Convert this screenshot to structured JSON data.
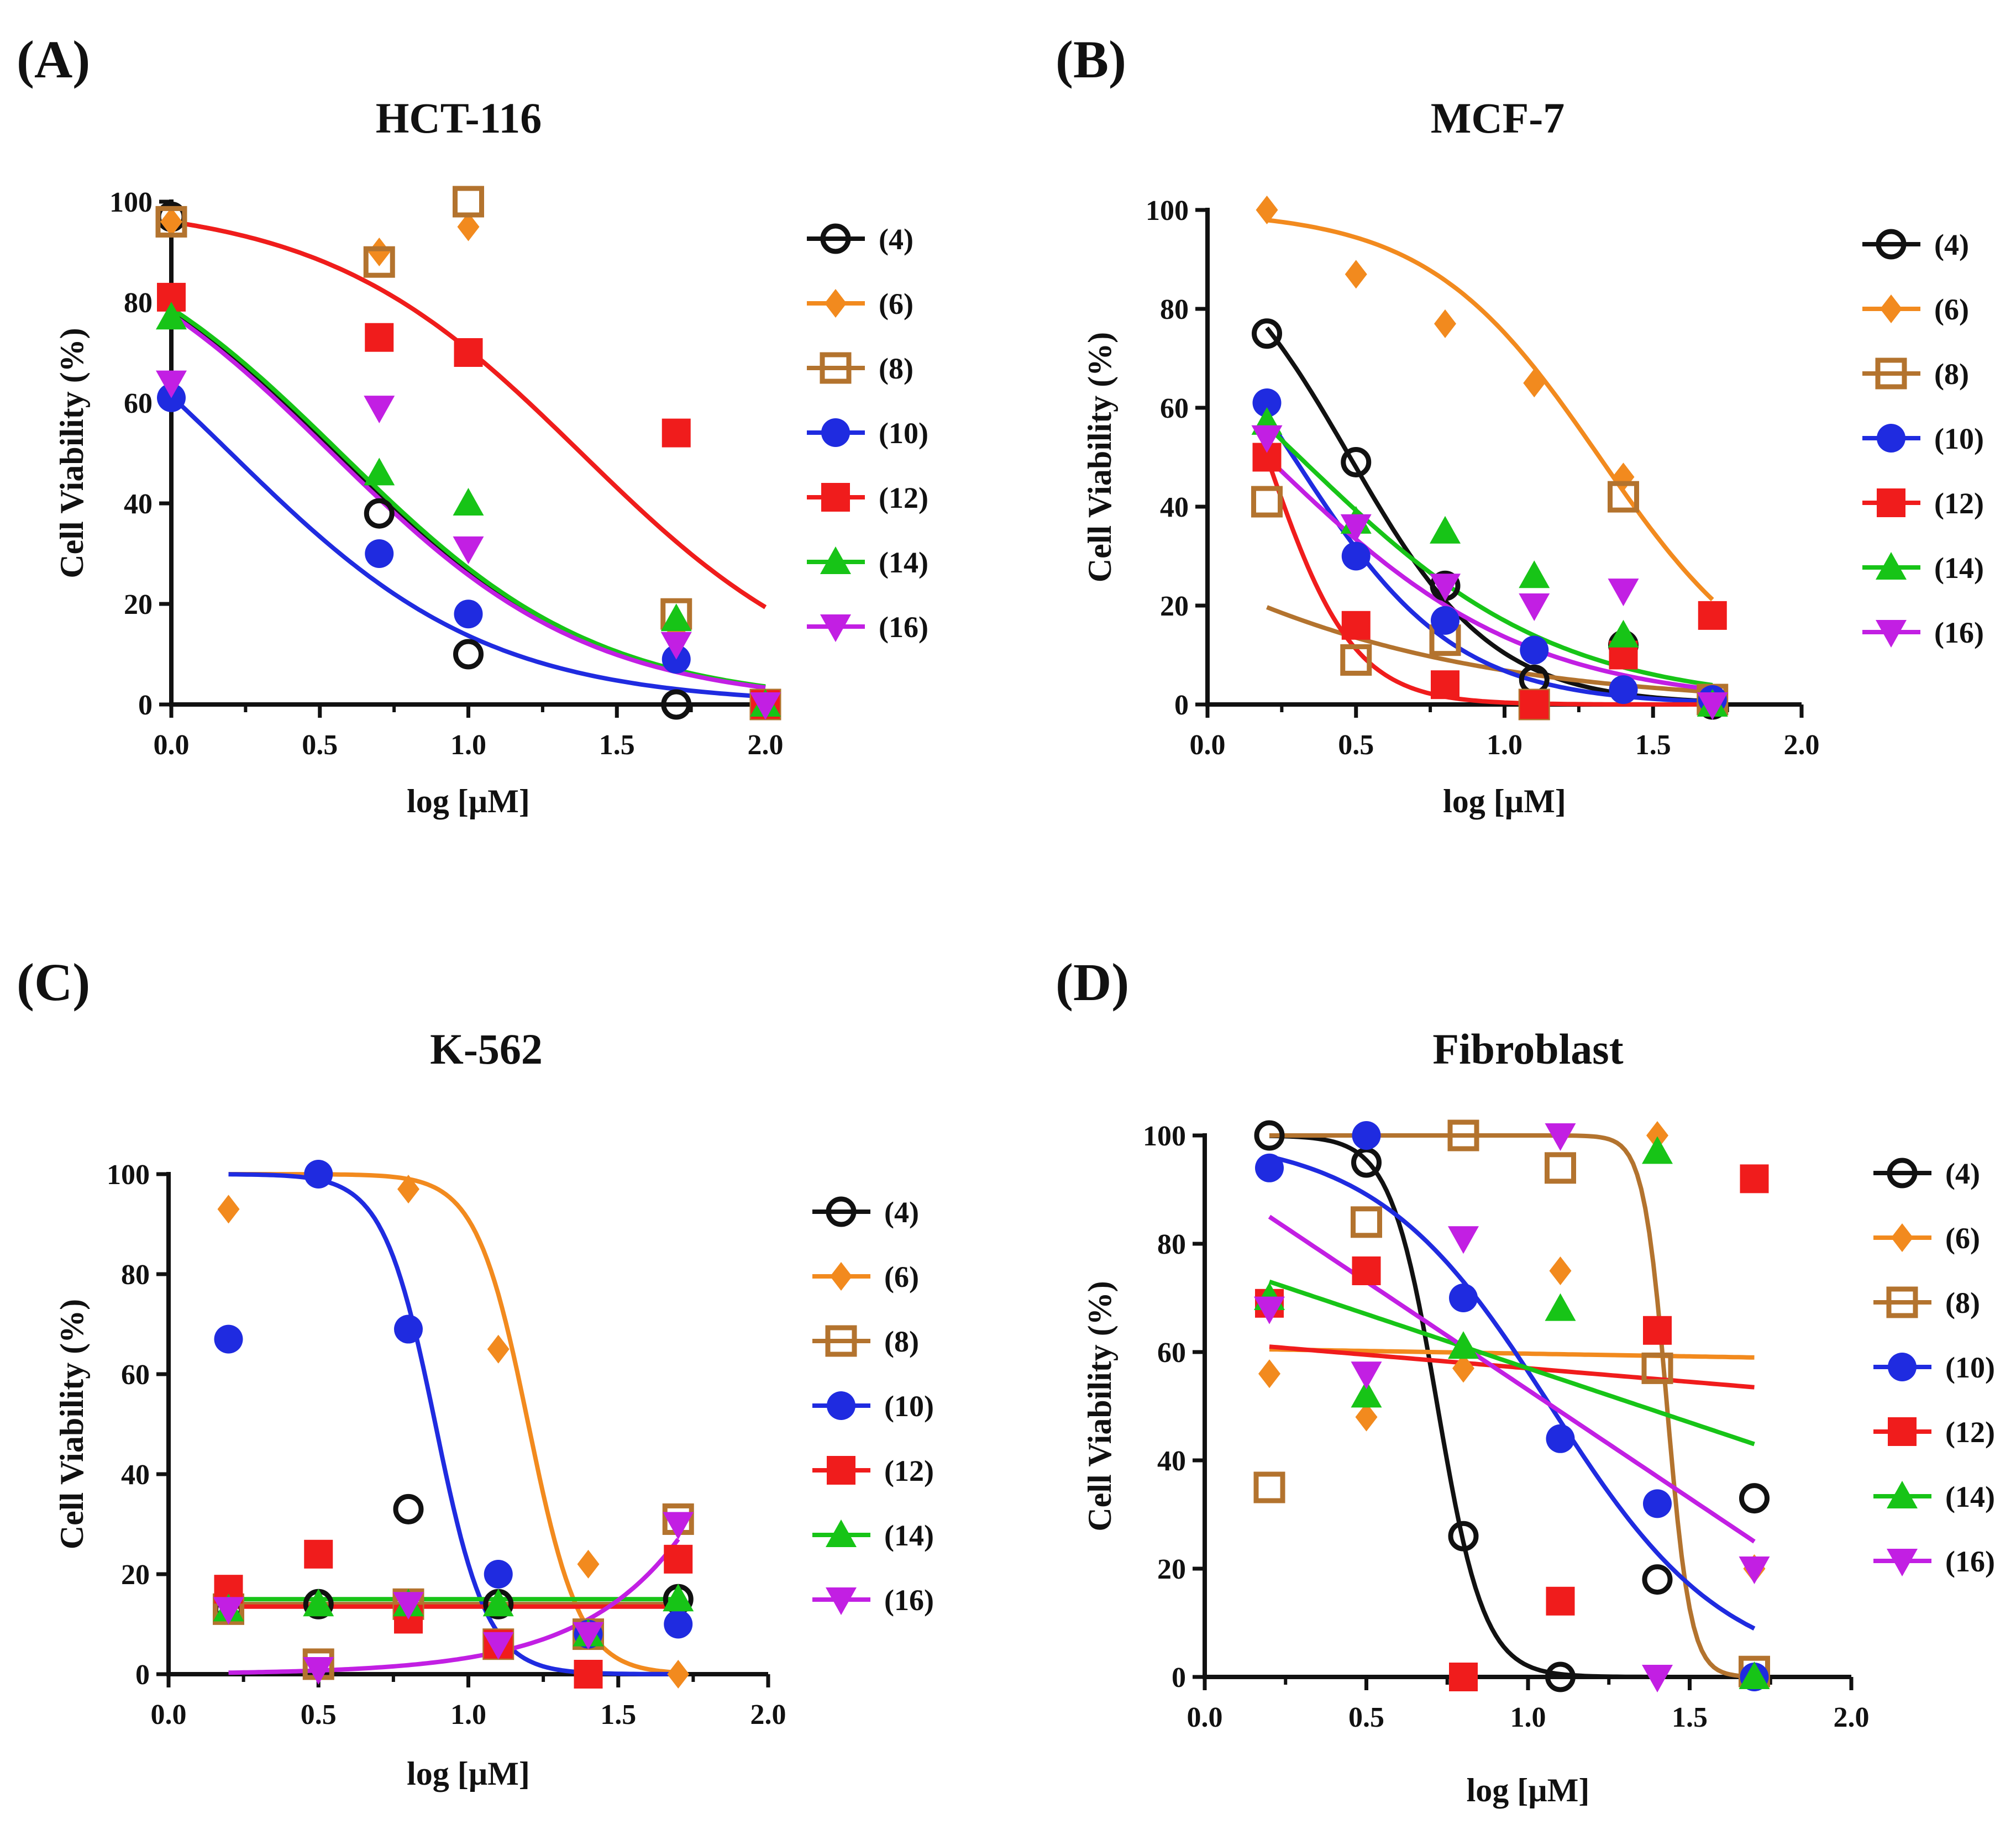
{
  "chart_data": [
    {
      "panel": "(A)",
      "title": "HCT-116",
      "type": "scatter",
      "xlabel": "log [µM]",
      "ylabel": "Cell Viability (%)",
      "xlim": [
        0,
        2.0
      ],
      "ylim": [
        0,
        100
      ],
      "xticks": [
        "0.0",
        "0.5",
        "1.0",
        "1.5",
        "2.0"
      ],
      "yticks": [
        "0",
        "20",
        "40",
        "60",
        "80",
        "100"
      ],
      "series": [
        {
          "name": "(4)",
          "marker": "circle-open",
          "x": [
            0,
            0.7,
            1.0,
            1.7,
            2.0
          ],
          "y": [
            97,
            38,
            10,
            0,
            0
          ],
          "fit": {
            "top": 100,
            "bottom": 0,
            "logIC50": 0.55,
            "hill": 1.0
          }
        },
        {
          "name": "(6)",
          "marker": "diamond",
          "x": [
            0,
            0.7,
            1.0,
            1.7,
            2.0
          ],
          "y": [
            96,
            90,
            95,
            14,
            0
          ],
          "fit": {
            "top": 100,
            "bottom": 0,
            "logIC50": 1.38,
            "hill": 1.0
          }
        },
        {
          "name": "(8)",
          "marker": "square-open",
          "x": [
            0,
            0.7,
            1.0,
            1.7,
            2.0
          ],
          "y": [
            96,
            88,
            100,
            18,
            0
          ],
          "fit": {
            "top": 100,
            "bottom": 0,
            "logIC50": 1.38,
            "hill": 1.0
          }
        },
        {
          "name": "(10)",
          "marker": "circle",
          "x": [
            0,
            0.7,
            1.0,
            1.7,
            2.0
          ],
          "y": [
            61,
            30,
            18,
            9,
            0
          ],
          "fit": {
            "top": 100,
            "bottom": 0,
            "logIC50": 0.2,
            "hill": 1.0
          }
        },
        {
          "name": "(12)",
          "marker": "square",
          "x": [
            0,
            0.7,
            1.0,
            1.7,
            2.0
          ],
          "y": [
            81,
            73,
            70,
            54,
            0
          ],
          "fit": {
            "top": 100,
            "bottom": 0,
            "logIC50": 1.38,
            "hill": 1.0
          }
        },
        {
          "name": "(14)",
          "marker": "triangle-up",
          "x": [
            0,
            0.7,
            1.0,
            1.7,
            2.0
          ],
          "y": [
            77,
            46,
            40,
            17,
            0
          ],
          "fit": {
            "top": 100,
            "bottom": 0,
            "logIC50": 0.57,
            "hill": 1.0
          }
        },
        {
          "name": "(16)",
          "marker": "triangle-down",
          "x": [
            0,
            0.7,
            1.0,
            1.7,
            2.0
          ],
          "y": [
            64,
            59,
            31,
            12,
            0
          ],
          "fit": {
            "top": 100,
            "bottom": 0,
            "logIC50": 0.54,
            "hill": 1.0
          }
        }
      ]
    },
    {
      "panel": "(B)",
      "title": "MCF-7",
      "type": "scatter",
      "xlabel": "log [µM]",
      "ylabel": "Cell Viability (%)",
      "xlim": [
        0,
        2.0
      ],
      "ylim": [
        0,
        100
      ],
      "xticks": [
        "0.0",
        "0.5",
        "1.0",
        "1.5",
        "2.0"
      ],
      "yticks": [
        "0",
        "20",
        "40",
        "60",
        "80",
        "100"
      ],
      "series": [
        {
          "name": "(4)",
          "marker": "circle-open",
          "x": [
            0.2,
            0.5,
            0.8,
            1.1,
            1.4,
            1.7
          ],
          "y": [
            75,
            49,
            24,
            5,
            12,
            0
          ],
          "fit": {
            "top": 100,
            "bottom": 0,
            "logIC50": 0.48,
            "hill": 1.8
          }
        },
        {
          "name": "(6)",
          "marker": "diamond",
          "x": [
            0.2,
            0.5,
            0.8,
            1.1,
            1.4,
            1.7
          ],
          "y": [
            100,
            87,
            77,
            65,
            46,
            0
          ],
          "fit": {
            "top": 100,
            "bottom": 0,
            "logIC50": 1.32,
            "hill": 1.5
          }
        },
        {
          "name": "(8)",
          "marker": "square-open",
          "x": [
            0.2,
            0.5,
            0.8,
            1.1,
            1.4,
            1.7
          ],
          "y": [
            41,
            9,
            13,
            0,
            42,
            1
          ],
          "fit": {
            "top": 100,
            "bottom": 0,
            "logIC50": -0.74,
            "hill": 0.65
          }
        },
        {
          "name": "(10)",
          "marker": "circle",
          "x": [
            0.2,
            0.5,
            0.8,
            1.1,
            1.4,
            1.7
          ],
          "y": [
            61,
            30,
            17,
            11,
            3,
            1
          ],
          "fit": {
            "top": 100,
            "bottom": 0,
            "logIC50": 0.29,
            "hill": 1.6
          }
        },
        {
          "name": "(12)",
          "marker": "square",
          "x": [
            0.2,
            0.5,
            0.8,
            1.1,
            1.4,
            1.7
          ],
          "y": [
            50,
            16,
            4,
            0,
            10,
            18
          ],
          "fit": {
            "top": 100,
            "bottom": 0,
            "logIC50": 0.2,
            "hill": 3.0
          }
        },
        {
          "name": "(14)",
          "marker": "triangle-up",
          "x": [
            0.2,
            0.5,
            0.8,
            1.1,
            1.4,
            1.7
          ],
          "y": [
            57,
            37,
            35,
            26,
            14,
            0
          ],
          "fit": {
            "top": 100,
            "bottom": 0,
            "logIC50": 0.31,
            "hill": 1.0
          }
        },
        {
          "name": "(16)",
          "marker": "triangle-down",
          "x": [
            0.2,
            0.5,
            0.8,
            1.1,
            1.4,
            1.7
          ],
          "y": [
            54,
            36,
            24,
            20,
            23,
            0
          ],
          "fit": {
            "top": 100,
            "bottom": 0,
            "logIC50": 0.2,
            "hill": 1.0
          }
        }
      ]
    },
    {
      "panel": "(C)",
      "title": "K-562",
      "type": "scatter",
      "xlabel": "log [µM]",
      "ylabel": "Cell Viability (%)",
      "xlim": [
        0,
        2.0
      ],
      "ylim": [
        0,
        100
      ],
      "xticks": [
        "0.0",
        "0.5",
        "1.0",
        "1.5",
        "2.0"
      ],
      "yticks": [
        "0",
        "20",
        "40",
        "60",
        "80",
        "100"
      ],
      "series": [
        {
          "name": "(4)",
          "marker": "circle-open",
          "x": [
            0.2,
            0.5,
            0.8,
            1.1,
            1.4,
            1.7
          ],
          "y": [
            13,
            14,
            33,
            14,
            8,
            15
          ],
          "fit": {
            "type": "constant",
            "value": 14
          }
        },
        {
          "name": "(6)",
          "marker": "diamond",
          "x": [
            0.2,
            0.5,
            0.8,
            1.1,
            1.4,
            1.7
          ],
          "y": [
            93,
            100,
            97,
            65,
            22,
            0
          ],
          "fit": {
            "top": 100,
            "bottom": 0,
            "logIC50": 1.2,
            "hill": 5.0
          }
        },
        {
          "name": "(8)",
          "marker": "square-open",
          "x": [
            0.2,
            0.5,
            0.8,
            1.1,
            1.4,
            1.7
          ],
          "y": [
            13,
            2,
            14,
            6,
            8,
            31
          ],
          "fit": {
            "type": "constant",
            "value": 14
          }
        },
        {
          "name": "(10)",
          "marker": "circle",
          "x": [
            0.2,
            0.5,
            0.8,
            1.1,
            1.4,
            1.7
          ],
          "y": [
            67,
            100,
            69,
            20,
            8,
            10
          ],
          "fit": {
            "top": 100,
            "bottom": 0,
            "logIC50": 0.89,
            "hill": 5.0
          }
        },
        {
          "name": "(12)",
          "marker": "square",
          "x": [
            0.2,
            0.5,
            0.8,
            1.1,
            1.4,
            1.7
          ],
          "y": [
            17,
            24,
            11,
            6,
            0,
            23
          ],
          "fit": {
            "type": "constant",
            "value": 13.5
          }
        },
        {
          "name": "(14)",
          "marker": "triangle-up",
          "x": [
            0.2,
            0.5,
            0.8,
            1.1,
            1.4,
            1.7
          ],
          "y": [
            13,
            14,
            14,
            14,
            8,
            15
          ],
          "fit": {
            "type": "constant",
            "value": 15
          }
        },
        {
          "name": "(16)",
          "marker": "triangle-down",
          "x": [
            0.2,
            0.5,
            0.8,
            1.1,
            1.4,
            1.7
          ],
          "y": [
            13,
            1,
            14,
            6,
            8,
            30
          ],
          "fit": {
            "type": "exponential",
            "start": 0.3,
            "end": 27
          }
        }
      ]
    },
    {
      "panel": "(D)",
      "title": "Fibroblast",
      "type": "scatter",
      "xlabel": "log [µM]",
      "ylabel": "Cell Viability (%)",
      "xlim": [
        0,
        2.0
      ],
      "ylim": [
        0,
        100
      ],
      "xticks": [
        "0.0",
        "0.5",
        "1.0",
        "1.5",
        "2.0"
      ],
      "yticks": [
        "0",
        "20",
        "40",
        "60",
        "80",
        "100"
      ],
      "series": [
        {
          "name": "(4)",
          "marker": "circle-open",
          "x": [
            0.2,
            0.5,
            0.8,
            1.1,
            1.4,
            1.7
          ],
          "y": [
            100,
            95,
            26,
            0,
            18,
            33
          ],
          "fit": {
            "top": 100,
            "bottom": 0,
            "logIC50": 0.72,
            "hill": 6.0
          }
        },
        {
          "name": "(6)",
          "marker": "diamond",
          "x": [
            0.2,
            0.5,
            0.8,
            1.1,
            1.4,
            1.7
          ],
          "y": [
            56,
            48,
            57,
            75,
            100,
            20
          ],
          "fit": {
            "type": "linear",
            "start": 60.5,
            "end": 59
          }
        },
        {
          "name": "(8)",
          "marker": "square-open",
          "x": [
            0.2,
            0.5,
            0.8,
            1.1,
            1.4,
            1.7
          ],
          "y": [
            35,
            84,
            100,
            94,
            57,
            1
          ],
          "fit": {
            "top": 100,
            "bottom": 0,
            "logIC50": 1.43,
            "hill": 12.0
          }
        },
        {
          "name": "(10)",
          "marker": "circle",
          "x": [
            0.2,
            0.5,
            0.8,
            1.1,
            1.4,
            1.7
          ],
          "y": [
            94,
            100,
            70,
            44,
            32,
            0
          ],
          "fit": {
            "top": 100,
            "bottom": 0,
            "logIC50": 1.07,
            "hill": 1.6
          }
        },
        {
          "name": "(12)",
          "marker": "square",
          "x": [
            0.2,
            0.5,
            0.8,
            1.1,
            1.4,
            1.7
          ],
          "y": [
            69,
            75,
            0,
            14,
            64,
            92
          ],
          "fit": {
            "type": "linear",
            "start": 61,
            "end": 53.5
          }
        },
        {
          "name": "(14)",
          "marker": "triangle-up",
          "x": [
            0.2,
            0.5,
            0.8,
            1.1,
            1.4,
            1.7
          ],
          "y": [
            70,
            52,
            61,
            68,
            97,
            0
          ],
          "fit": {
            "type": "linear",
            "start": 73,
            "end": 43
          }
        },
        {
          "name": "(16)",
          "marker": "triangle-down",
          "x": [
            0.2,
            0.5,
            0.8,
            1.1,
            1.4,
            1.7
          ],
          "y": [
            68,
            56,
            81,
            100,
            0,
            20
          ],
          "fit": {
            "type": "linear",
            "start": 85,
            "end": 25
          }
        }
      ]
    }
  ],
  "colors": {
    "(4)": "#111111",
    "(6)": "#F28A1E",
    "(8)": "#B3732E",
    "(10)": "#1F2BE0",
    "(12)": "#F01C1C",
    "(14)": "#17C417",
    "(16)": "#C21FE3"
  }
}
